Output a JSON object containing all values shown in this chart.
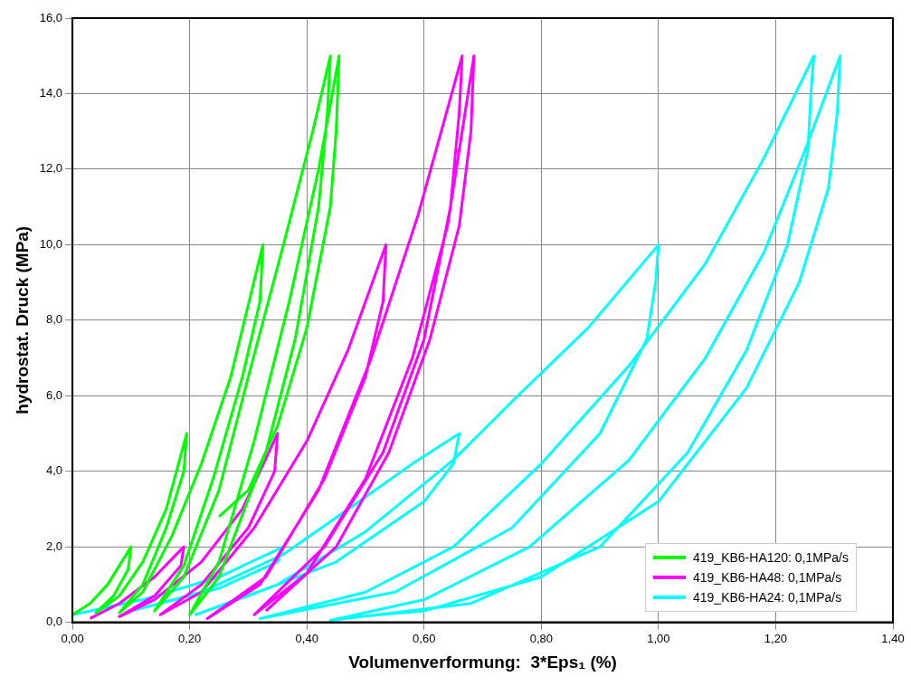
{
  "chart_data": {
    "type": "line",
    "xlabel": "Volumenverformung:  3*Eps₁ (%)",
    "ylabel": "hydrostat. Druck (MPa)",
    "xlim": [
      0,
      1.4
    ],
    "ylim": [
      0,
      16
    ],
    "xticks": [
      {
        "value": 0,
        "label": "0,00"
      },
      {
        "value": 0.2,
        "label": "0,20"
      },
      {
        "value": 0.4,
        "label": "0,40"
      },
      {
        "value": 0.6,
        "label": "0,60"
      },
      {
        "value": 0.8,
        "label": "0,80"
      },
      {
        "value": 1.0,
        "label": "1,00"
      },
      {
        "value": 1.2,
        "label": "1,20"
      },
      {
        "value": 1.4,
        "label": "1,40"
      }
    ],
    "yticks": [
      {
        "value": 0,
        "label": "0,0"
      },
      {
        "value": 2,
        "label": "2,0"
      },
      {
        "value": 4,
        "label": "4,0"
      },
      {
        "value": 6,
        "label": "6,0"
      },
      {
        "value": 8,
        "label": "8,0"
      },
      {
        "value": 10,
        "label": "10,0"
      },
      {
        "value": 12,
        "label": "12,0"
      },
      {
        "value": 14,
        "label": "14,0"
      },
      {
        "value": 16,
        "label": "16,0"
      }
    ],
    "grid": true,
    "legend": "bottom right",
    "marker": "none",
    "line_style": "solid",
    "series": [
      {
        "name": "419_KB6-HA120: 0,1MPa/s",
        "color": "#00ff00",
        "x": [
          0,
          0.03,
          0.06,
          0.1,
          0.095,
          0.07,
          0.04,
          0.08,
          0.12,
          0.16,
          0.195,
          0.19,
          0.16,
          0.12,
          0.08,
          0.12,
          0.17,
          0.22,
          0.27,
          0.325,
          0.32,
          0.29,
          0.24,
          0.19,
          0.14,
          0.19,
          0.25,
          0.3,
          0.36,
          0.41,
          0.44,
          0.435,
          0.42,
          0.38,
          0.33,
          0.25,
          0.2,
          0.25,
          0.31,
          0.37,
          0.42,
          0.455,
          0.45,
          0.44,
          0.4,
          0.35,
          0.3,
          0.25
        ],
        "values": [
          0.2,
          0.5,
          1.0,
          2.0,
          1.4,
          0.7,
          0.25,
          0.7,
          1.6,
          3.0,
          5.0,
          4.0,
          2.5,
          1.0,
          0.25,
          0.8,
          2.3,
          4.2,
          6.5,
          10,
          8.5,
          6.5,
          3.8,
          1.5,
          0.3,
          1.2,
          3.5,
          6.5,
          10,
          13,
          15,
          13.5,
          11,
          7.5,
          4.5,
          1.2,
          0.2,
          1.6,
          4.8,
          8.5,
          12,
          15,
          13,
          11,
          7.8,
          5.2,
          3.5,
          2.8
        ]
      },
      {
        "name": "419_KB6-HA48: 0,1MPa/s",
        "color": "#ff00ff",
        "x": [
          0.03,
          0.08,
          0.14,
          0.19,
          0.185,
          0.14,
          0.08,
          0.14,
          0.22,
          0.29,
          0.35,
          0.345,
          0.3,
          0.22,
          0.15,
          0.22,
          0.31,
          0.4,
          0.47,
          0.535,
          0.53,
          0.5,
          0.43,
          0.33,
          0.23,
          0.32,
          0.42,
          0.51,
          0.59,
          0.665,
          0.66,
          0.645,
          0.6,
          0.53,
          0.43,
          0.31,
          0.4,
          0.5,
          0.58,
          0.64,
          0.685,
          0.68,
          0.66,
          0.61,
          0.54,
          0.45,
          0.33
        ],
        "values": [
          0.1,
          0.5,
          1.2,
          2.0,
          1.5,
          0.7,
          0.15,
          0.6,
          1.6,
          3.0,
          5.0,
          4.0,
          2.5,
          1.0,
          0.2,
          0.8,
          2.5,
          4.8,
          7.2,
          10,
          8.5,
          6.5,
          3.8,
          1.2,
          0.1,
          1.0,
          3.5,
          7.0,
          10.8,
          15,
          13.5,
          11,
          7.5,
          4.5,
          2.0,
          0.2,
          1.3,
          3.8,
          7.0,
          10.5,
          15,
          13,
          10.5,
          7.5,
          4.5,
          2.0,
          0.3
        ]
      },
      {
        "name": "419_KB6-HA24: 0,1MPa/s",
        "color": "#00ffff",
        "x": [
          0,
          0.12,
          0.25,
          0.36,
          0.35,
          0.25,
          0.1,
          0.22,
          0.36,
          0.48,
          0.58,
          0.66,
          0.65,
          0.6,
          0.45,
          0.3,
          0.21,
          0.35,
          0.5,
          0.65,
          0.76,
          0.88,
          1.0,
          0.995,
          0.98,
          0.9,
          0.75,
          0.55,
          0.32,
          0.5,
          0.65,
          0.8,
          0.95,
          1.08,
          1.18,
          1.265,
          1.26,
          1.255,
          1.22,
          1.15,
          1.05,
          0.9,
          0.68,
          0.44,
          0.6,
          0.78,
          0.95,
          1.08,
          1.18,
          1.25,
          1.31,
          1.305,
          1.29,
          1.24,
          1.15,
          1.0,
          0.8,
          0.6,
          0.45
        ],
        "values": [
          0.2,
          0.6,
          1.2,
          2.0,
          1.6,
          0.9,
          0.3,
          0.8,
          1.8,
          3.1,
          4.2,
          5.0,
          4.2,
          3.2,
          1.6,
          0.7,
          0.2,
          1.0,
          2.4,
          4.3,
          6.0,
          7.8,
          10,
          9.0,
          7.5,
          5.0,
          2.5,
          0.8,
          0.1,
          0.8,
          2.0,
          4.2,
          6.8,
          9.5,
          12.3,
          15,
          14,
          12.5,
          10,
          7.2,
          4.5,
          2.0,
          0.5,
          0.05,
          0.6,
          2.0,
          4.3,
          7.0,
          9.8,
          12.5,
          15,
          13.5,
          11.5,
          9.0,
          6.2,
          3.2,
          1.2,
          0.3,
          0.1
        ]
      }
    ]
  }
}
